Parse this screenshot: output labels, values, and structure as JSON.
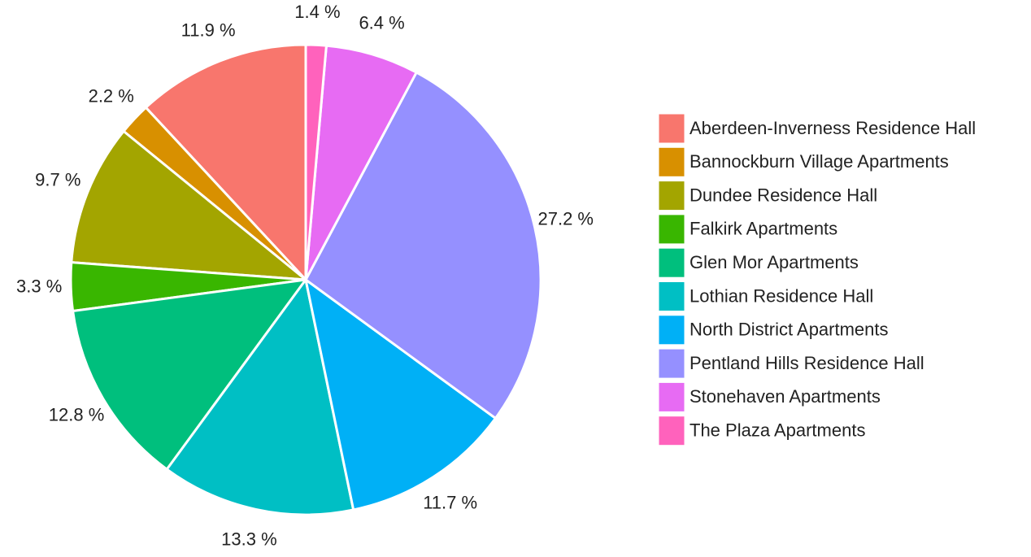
{
  "chart_data": {
    "type": "pie",
    "categories": [
      "Aberdeen-Inverness Residence Hall",
      "Bannockburn Village Apartments",
      "Dundee Residence Hall",
      "Falkirk Apartments",
      "Glen Mor Apartments",
      "Lothian Residence Hall",
      "North District Apartments",
      "Pentland Hills Residence Hall",
      "Stonehaven Apartments",
      "The Plaza Apartments"
    ],
    "values": [
      11.9,
      2.2,
      9.7,
      3.3,
      12.8,
      13.3,
      11.7,
      27.2,
      6.4,
      1.4
    ],
    "value_labels": [
      "11.9 %",
      "2.2 %",
      "9.7 %",
      "3.3 %",
      "12.8 %",
      "13.3 %",
      "11.7 %",
      "27.2 %",
      "6.4 %",
      "1.4 %"
    ],
    "colors": [
      "#F8766D",
      "#D89000",
      "#A3A500",
      "#39B600",
      "#00BF7D",
      "#00BFC4",
      "#00B0F6",
      "#9590FF",
      "#E76BF3",
      "#FF62BC"
    ],
    "legend": "right"
  }
}
